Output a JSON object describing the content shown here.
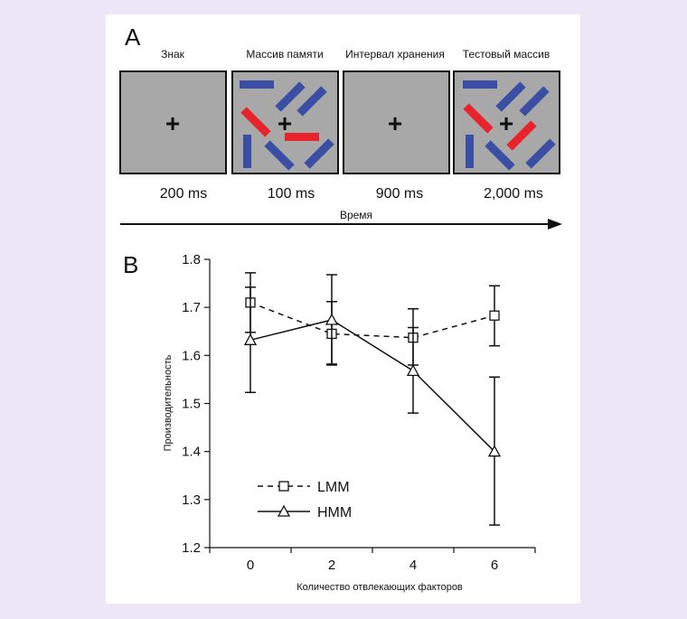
{
  "panel_a": {
    "label": "A",
    "frames": [
      {
        "title": "Знак",
        "duration": "200 ms"
      },
      {
        "title": "Массив памяти",
        "duration": "100 ms"
      },
      {
        "title": "Интервал хранения",
        "duration": "900 ms"
      },
      {
        "title": "Тестовый массив",
        "duration": "2,000 ms"
      }
    ],
    "fixation_symbol": "+",
    "timeline_label": "Время",
    "colors": {
      "frame_bg": "#a8a8a8",
      "target": "#e8232c",
      "distractor": "#3a4ea3"
    }
  },
  "panel_b": {
    "label": "B",
    "chart_data": {
      "type": "line",
      "xlabel": "Количество отвлекающих факторов",
      "ylabel": "Производительность",
      "x": [
        0,
        2,
        4,
        6
      ],
      "xticks": [
        "0",
        "2",
        "4",
        "6"
      ],
      "yticks": [
        "1.2",
        "1.3",
        "1.4",
        "1.5",
        "1.6",
        "1.7",
        "1.8"
      ],
      "ylim": [
        1.2,
        1.8
      ],
      "grid": false,
      "legend_position": "bottom-left",
      "series": [
        {
          "name": "LMM",
          "marker": "square",
          "style": "dashed",
          "values": [
            1.71,
            1.645,
            1.637,
            1.683
          ],
          "err_low": [
            1.648,
            1.582,
            1.58,
            1.62
          ],
          "err_high": [
            1.772,
            1.712,
            1.697,
            1.745
          ]
        },
        {
          "name": "HMM",
          "marker": "triangle",
          "style": "solid",
          "values": [
            1.632,
            1.674,
            1.568,
            1.4
          ],
          "err_low": [
            1.523,
            1.58,
            1.48,
            1.247
          ],
          "err_high": [
            1.742,
            1.768,
            1.658,
            1.555
          ]
        }
      ]
    }
  }
}
